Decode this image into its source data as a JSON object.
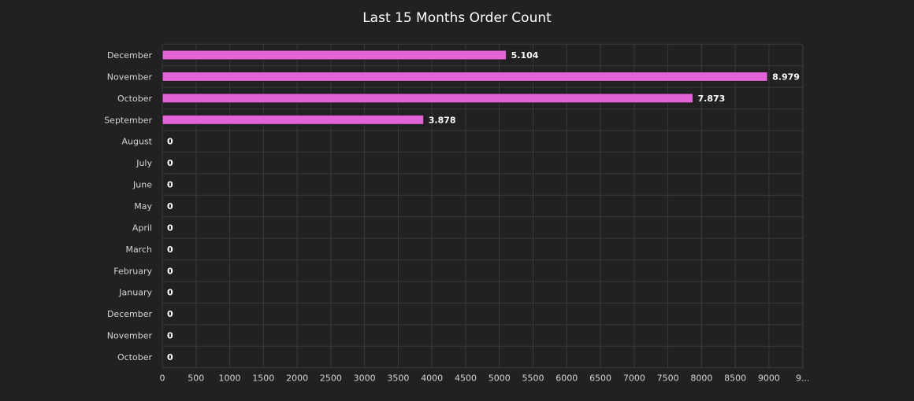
{
  "chart_data": {
    "type": "bar",
    "orientation": "horizontal",
    "title": "Last 15 Months Order Count",
    "categories": [
      "December",
      "November",
      "October",
      "September",
      "August",
      "July",
      "June",
      "May",
      "April",
      "March",
      "February",
      "January",
      "December",
      "November",
      "October"
    ],
    "values": [
      5104,
      8979,
      7873,
      3878,
      0,
      0,
      0,
      0,
      0,
      0,
      0,
      0,
      0,
      0,
      0
    ],
    "value_labels": [
      "5.104",
      "8.979",
      "7.873",
      "3.878",
      "0",
      "0",
      "0",
      "0",
      "0",
      "0",
      "0",
      "0",
      "0",
      "0",
      "0"
    ],
    "x_ticks": [
      "0",
      "500",
      "1000",
      "1500",
      "2000",
      "2500",
      "3000",
      "3500",
      "4000",
      "4500",
      "5000",
      "5500",
      "6000",
      "6500",
      "7000",
      "7500",
      "8000",
      "8500",
      "9000",
      "9..."
    ],
    "xlim": [
      0,
      9500
    ],
    "xlabel": "",
    "ylabel": "",
    "grid": true,
    "legend": "none",
    "colors": {
      "background": "#212123",
      "bar_fill": "#e263d6",
      "bar_stroke": "#1a1a1a",
      "grid": "#3a3a3c",
      "text": "#d4d4d4",
      "value_text": "#ffffff"
    }
  }
}
